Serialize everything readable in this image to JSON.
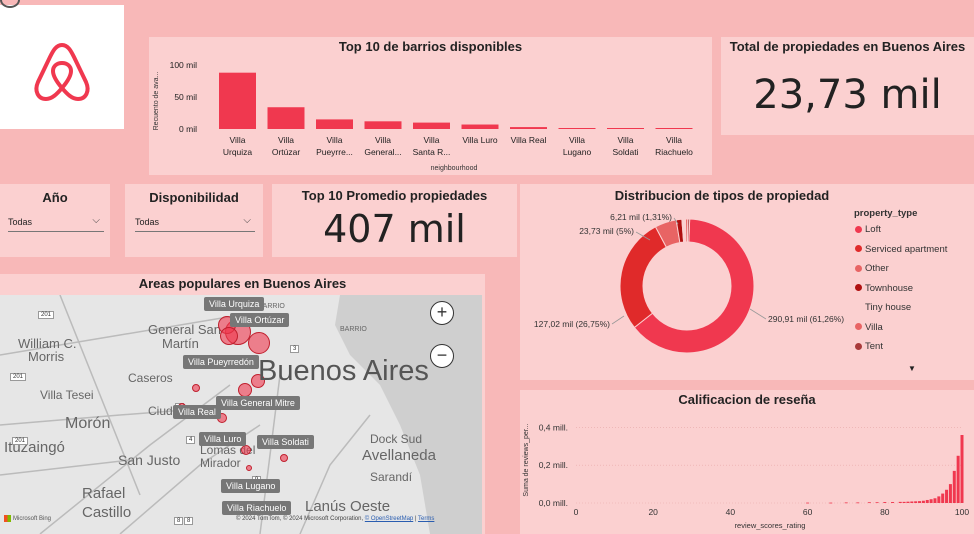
{
  "logo": {
    "icon": "airbnb-logo-icon"
  },
  "colors": {
    "background": "#f8b8b8",
    "card": "#fbd0d0",
    "accent": "#f0384f",
    "dark_red": "#8b1a1a"
  },
  "top_barrios": {
    "title": "Top 10 de barrios disponibles",
    "chart_data": {
      "type": "bar",
      "title": "Top 10 de barrios disponibles",
      "categories": [
        "Villa Urquiza",
        "Villa Ortúzar",
        "Villa Pueyrre...",
        "Villa General...",
        "Villa Santa R...",
        "Villa Luro",
        "Villa Real",
        "Villa Lugano",
        "Villa Soldati",
        "Villa Riachuelo"
      ],
      "values": [
        88000,
        34000,
        15000,
        12000,
        10000,
        7000,
        3000,
        1000,
        700,
        400
      ],
      "ylabel": "Recuento de ava...",
      "xlabel": "neighbourhood",
      "yticks": [
        "0 mil",
        "50 mil",
        "100 mil"
      ],
      "ylim": [
        0,
        100000
      ]
    },
    "category_lines": [
      [
        "Villa",
        "Urquiza"
      ],
      [
        "Villa",
        "Ortúzar"
      ],
      [
        "Villa",
        "Pueyrre..."
      ],
      [
        "Villa",
        "General..."
      ],
      [
        "Villa",
        "Santa R..."
      ],
      [
        "Villa Luro"
      ],
      [
        "Villa Real"
      ],
      [
        "Villa",
        "Lugano"
      ],
      [
        "Villa",
        "Soldati"
      ],
      [
        "Villa",
        "Riachuelo"
      ]
    ]
  },
  "total_propiedades": {
    "title": "Total de propiedades en Buenos Aires",
    "value": "23,73 mil"
  },
  "slicer_ano": {
    "title": "Año",
    "value": "Todas"
  },
  "slicer_disponibilidad": {
    "title": "Disponibilidad",
    "value": "Todas"
  },
  "promedio": {
    "title": "Top 10 Promedio propiedades",
    "value": "407 mil"
  },
  "distribucion": {
    "title": "Distribucion de tipos de propiedad",
    "legend_title": "property_type",
    "chart_data": {
      "type": "pie",
      "title": "Distribucion de tipos de propiedad",
      "slices": [
        {
          "name": "Loft",
          "value": 290.91,
          "label": "290,91 mil (61,26%)",
          "color": "#f0384f"
        },
        {
          "name": "Serviced apartment",
          "value": 127.02,
          "label": "127,02 mil (26,75%)",
          "color": "#e02a2a"
        },
        {
          "name": "Other",
          "value": 23.73,
          "label": "23,73 mil (5%)",
          "color": "#e86464"
        },
        {
          "name": "Townhouse",
          "value": 6.21,
          "label": "6,21 mil (1,31%)",
          "color": "#b01010"
        },
        {
          "name": "Tiny house",
          "value": 4.0,
          "label": "",
          "color": "#fbd0d0"
        },
        {
          "name": "Villa",
          "value": 2.5,
          "label": "",
          "color": "#e86464"
        },
        {
          "name": "Tent",
          "value": 2.0,
          "label": "",
          "color": "#a83a3a"
        }
      ]
    }
  },
  "mapa": {
    "title": "Areas populares en Buenos Aires",
    "city_label": "Buenos Aires",
    "attribution": "© 2024 TomTom, © 2024 Microsoft Corporation,",
    "osm_link": "© OpenStreetMap",
    "terms": "Terms",
    "bing": "Microsoft Bing",
    "zoom_in": "+",
    "zoom_out": "−",
    "places": [
      "General San",
      "Martín",
      "William C.",
      "Morris",
      "Caseros",
      "Villa Tesei",
      "Morón",
      "Ituzaingó",
      "San Justo",
      "Rafael",
      "Castillo",
      "Lomas del",
      "Mirador",
      "Lanús Oeste",
      "Avellaneda",
      "Dock Sud",
      "Sarandí",
      "BARRIO",
      "BARRIO",
      "Ciuda"
    ],
    "roads": [
      "201",
      "201",
      "201",
      "4",
      "4",
      "3",
      "8",
      "8",
      "9"
    ],
    "labels": [
      "Villa Urquiza",
      "Villa Ortúzar",
      "Villa Pueyrredón",
      "Villa General Mitre",
      "Villa Real",
      "Villa Luro",
      "Villa Soldati",
      "Villa Lugano",
      "Villa Riachuelo"
    ]
  },
  "calificacion": {
    "title": "Calificacion de reseña",
    "chart_data": {
      "type": "bar",
      "title": "Calificacion de reseña",
      "xlabel": "review_scores_rating",
      "ylabel": "Suma de reviews_per...",
      "xlim": [
        0,
        100
      ],
      "ylim": [
        0,
        0.45
      ],
      "yticks": [
        "0,0 mill.",
        "0,2 mill.",
        "0,4 mill."
      ],
      "xticks": [
        "0",
        "20",
        "40",
        "60",
        "80",
        "100"
      ],
      "x": [
        60,
        66,
        70,
        73,
        76,
        78,
        80,
        82,
        84,
        85,
        86,
        87,
        88,
        89,
        90,
        91,
        92,
        93,
        94,
        95,
        96,
        97,
        98,
        99,
        100
      ],
      "values": [
        0.002,
        0.002,
        0.003,
        0.003,
        0.004,
        0.004,
        0.005,
        0.005,
        0.006,
        0.006,
        0.007,
        0.008,
        0.009,
        0.01,
        0.012,
        0.016,
        0.02,
        0.025,
        0.035,
        0.05,
        0.07,
        0.1,
        0.17,
        0.25,
        0.36
      ]
    }
  }
}
